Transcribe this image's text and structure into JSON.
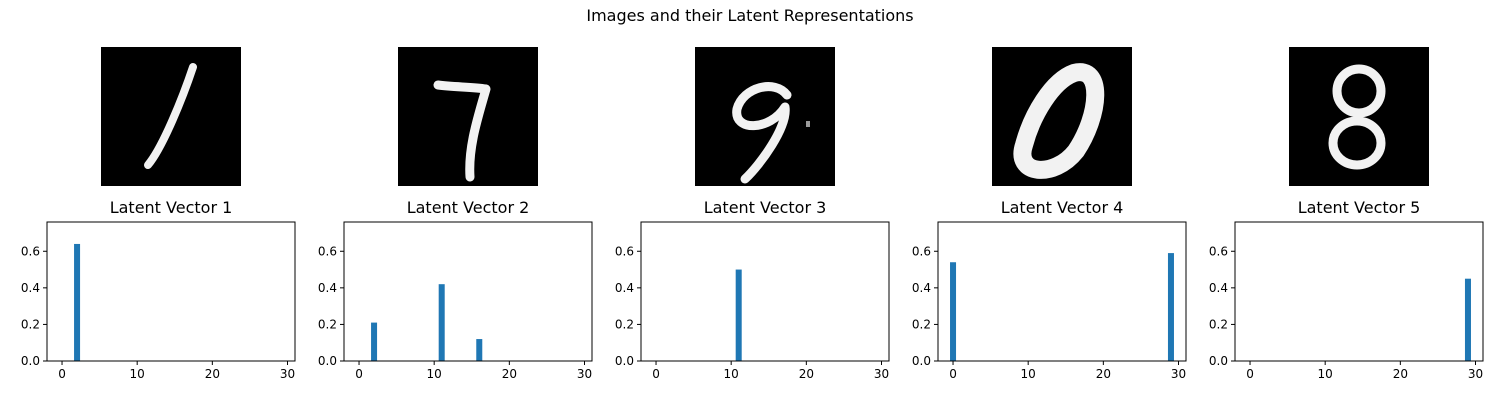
{
  "figure": {
    "title": "Images and their Latent Representations"
  },
  "digits": [
    {
      "label": "1",
      "icon": "handwritten-digit-1"
    },
    {
      "label": "7",
      "icon": "handwritten-digit-7"
    },
    {
      "label": "9",
      "icon": "handwritten-digit-9"
    },
    {
      "label": "0",
      "icon": "handwritten-digit-0"
    },
    {
      "label": "8",
      "icon": "handwritten-digit-8"
    }
  ],
  "chart_data": [
    {
      "type": "bar",
      "title": "Latent Vector 1",
      "xlabel": "",
      "ylabel": "",
      "xlim": [
        -2,
        31
      ],
      "ylim": [
        0,
        0.76
      ],
      "grid": false,
      "xticks": [
        0,
        10,
        20,
        30
      ],
      "yticks": [
        0.0,
        0.2,
        0.4,
        0.6
      ],
      "xtick_labels": [
        "0",
        "10",
        "20",
        "30"
      ],
      "ytick_labels": [
        "0.0",
        "0.2",
        "0.4",
        "0.6"
      ],
      "x": [
        2
      ],
      "values": [
        0.64
      ],
      "bar_width": 0.8,
      "color": "#1f77b4"
    },
    {
      "type": "bar",
      "title": "Latent Vector 2",
      "xlabel": "",
      "ylabel": "",
      "xlim": [
        -2,
        31
      ],
      "ylim": [
        0,
        0.76
      ],
      "grid": false,
      "xticks": [
        0,
        10,
        20,
        30
      ],
      "yticks": [
        0.0,
        0.2,
        0.4,
        0.6
      ],
      "xtick_labels": [
        "0",
        "10",
        "20",
        "30"
      ],
      "ytick_labels": [
        "0.0",
        "0.2",
        "0.4",
        "0.6"
      ],
      "x": [
        2,
        11,
        16
      ],
      "values": [
        0.21,
        0.42,
        0.12
      ],
      "bar_width": 0.8,
      "color": "#1f77b4"
    },
    {
      "type": "bar",
      "title": "Latent Vector 3",
      "xlabel": "",
      "ylabel": "",
      "xlim": [
        -2,
        31
      ],
      "ylim": [
        0,
        0.76
      ],
      "grid": false,
      "xticks": [
        0,
        10,
        20,
        30
      ],
      "yticks": [
        0.0,
        0.2,
        0.4,
        0.6
      ],
      "xtick_labels": [
        "0",
        "10",
        "20",
        "30"
      ],
      "ytick_labels": [
        "0.0",
        "0.2",
        "0.4",
        "0.6"
      ],
      "x": [
        11
      ],
      "values": [
        0.5
      ],
      "bar_width": 0.8,
      "color": "#1f77b4"
    },
    {
      "type": "bar",
      "title": "Latent Vector 4",
      "xlabel": "",
      "ylabel": "",
      "xlim": [
        -2,
        31
      ],
      "ylim": [
        0,
        0.76
      ],
      "grid": false,
      "xticks": [
        0,
        10,
        20,
        30
      ],
      "yticks": [
        0.0,
        0.2,
        0.4,
        0.6
      ],
      "xtick_labels": [
        "0",
        "10",
        "20",
        "30"
      ],
      "ytick_labels": [
        "0.0",
        "0.2",
        "0.4",
        "0.6"
      ],
      "x": [
        0,
        29
      ],
      "values": [
        0.54,
        0.59
      ],
      "bar_width": 0.8,
      "color": "#1f77b4"
    },
    {
      "type": "bar",
      "title": "Latent Vector 5",
      "xlabel": "",
      "ylabel": "",
      "xlim": [
        -2,
        31
      ],
      "ylim": [
        0,
        0.76
      ],
      "grid": false,
      "xticks": [
        0,
        10,
        20,
        30
      ],
      "yticks": [
        0.0,
        0.2,
        0.4,
        0.6
      ],
      "xtick_labels": [
        "0",
        "10",
        "20",
        "30"
      ],
      "ytick_labels": [
        "0.0",
        "0.2",
        "0.4",
        "0.6"
      ],
      "x": [
        29
      ],
      "values": [
        0.45
      ],
      "bar_width": 0.8,
      "color": "#1f77b4"
    }
  ]
}
